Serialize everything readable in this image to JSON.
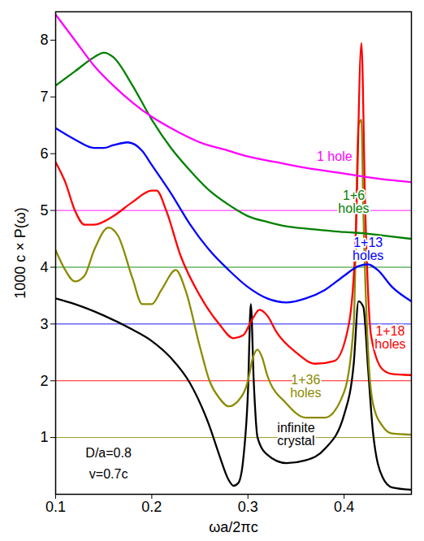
{
  "chart_data": {
    "type": "line",
    "x_label": "ωa/2πc",
    "y_label": "1000 c × P(ω)",
    "xlim": [
      0.1,
      0.47
    ],
    "xticks": [
      0.1,
      0.2,
      0.3,
      0.4
    ],
    "ylim": [
      0,
      8.5
    ],
    "yticks": [
      1,
      2,
      3,
      4,
      5,
      6,
      7,
      8
    ],
    "annotations": [
      "D/a=0.8",
      "v=0.7c"
    ],
    "series": [
      {
        "name": "infinite\ncrystal",
        "color": "#000000",
        "x": [
          0.1,
          0.12,
          0.15,
          0.18,
          0.2,
          0.22,
          0.24,
          0.26,
          0.27,
          0.28,
          0.285,
          0.29,
          0.295,
          0.3,
          0.303,
          0.306,
          0.31,
          0.32,
          0.34,
          0.36,
          0.38,
          0.4,
          0.41,
          0.415,
          0.42,
          0.425,
          0.43,
          0.44,
          0.45,
          0.47
        ],
        "values": [
          3.45,
          3.35,
          3.15,
          2.9,
          2.7,
          2.4,
          1.95,
          1.2,
          0.7,
          0.25,
          0.15,
          0.2,
          0.6,
          1.8,
          3.35,
          2.0,
          1.0,
          0.7,
          0.55,
          0.6,
          0.8,
          1.4,
          2.3,
          3.4,
          3.3,
          2.2,
          1.1,
          0.3,
          0.12,
          0.08
        ]
      },
      {
        "name": "1+36\nholes",
        "color": "#8b8b00",
        "baseline": 1,
        "x": [
          0.1,
          0.11,
          0.12,
          0.13,
          0.14,
          0.155,
          0.165,
          0.18,
          0.19,
          0.2,
          0.21,
          0.225,
          0.235,
          0.25,
          0.26,
          0.27,
          0.28,
          0.29,
          0.3,
          0.305,
          0.31,
          0.315,
          0.32,
          0.34,
          0.36,
          0.38,
          0.4,
          0.41,
          0.415,
          0.418,
          0.42,
          0.425,
          0.43,
          0.44,
          0.45,
          0.47
        ],
        "values": [
          4.3,
          3.95,
          3.75,
          3.85,
          4.3,
          4.7,
          4.55,
          3.8,
          3.35,
          3.35,
          3.6,
          3.95,
          3.6,
          2.6,
          2.0,
          1.7,
          1.55,
          1.65,
          2.0,
          2.4,
          2.55,
          2.4,
          2.1,
          1.6,
          1.35,
          1.35,
          1.8,
          3.0,
          6.5,
          6.6,
          5.0,
          2.5,
          1.6,
          1.2,
          1.07,
          1.05
        ]
      },
      {
        "name": "1+18\nholes",
        "color": "#ff0000",
        "baseline": 2,
        "x": [
          0.1,
          0.11,
          0.12,
          0.13,
          0.14,
          0.16,
          0.18,
          0.2,
          0.205,
          0.215,
          0.23,
          0.25,
          0.27,
          0.285,
          0.295,
          0.305,
          0.312,
          0.32,
          0.33,
          0.35,
          0.37,
          0.39,
          0.405,
          0.412,
          0.418,
          0.422,
          0.428,
          0.44,
          0.45,
          0.47
        ],
        "values": [
          5.85,
          5.5,
          5.0,
          4.75,
          4.75,
          4.9,
          5.15,
          5.35,
          5.35,
          5.0,
          4.2,
          3.5,
          3.0,
          2.75,
          2.8,
          3.1,
          3.25,
          3.15,
          2.85,
          2.5,
          2.3,
          2.35,
          3.0,
          4.5,
          7.95,
          5.0,
          2.8,
          2.2,
          2.12,
          2.1
        ]
      },
      {
        "name": "1+13\nholes",
        "color": "#0000ff",
        "baseline": 3,
        "x": [
          0.1,
          0.12,
          0.14,
          0.15,
          0.16,
          0.175,
          0.19,
          0.2,
          0.22,
          0.24,
          0.26,
          0.28,
          0.3,
          0.32,
          0.34,
          0.36,
          0.38,
          0.4,
          0.415,
          0.425,
          0.435,
          0.45,
          0.47
        ],
        "values": [
          6.45,
          6.25,
          6.1,
          6.1,
          6.15,
          6.2,
          6.05,
          5.8,
          5.3,
          4.75,
          4.3,
          3.95,
          3.65,
          3.45,
          3.38,
          3.45,
          3.6,
          3.85,
          4.02,
          4.05,
          3.95,
          3.65,
          3.4
        ]
      },
      {
        "name": "1+6\nholes",
        "color": "#008000",
        "baseline": 4,
        "x": [
          0.1,
          0.12,
          0.14,
          0.15,
          0.16,
          0.18,
          0.2,
          0.22,
          0.24,
          0.26,
          0.28,
          0.3,
          0.32,
          0.34,
          0.36,
          0.38,
          0.4,
          0.42,
          0.44,
          0.47
        ],
        "values": [
          7.2,
          7.45,
          7.7,
          7.78,
          7.7,
          7.2,
          6.6,
          6.1,
          5.7,
          5.35,
          5.1,
          4.9,
          4.8,
          4.72,
          4.68,
          4.65,
          4.62,
          4.6,
          4.56,
          4.5
        ]
      },
      {
        "name": "1 hole",
        "color": "#ff00ff",
        "baseline": 5,
        "x": [
          0.1,
          0.12,
          0.14,
          0.16,
          0.18,
          0.2,
          0.22,
          0.25,
          0.28,
          0.3,
          0.33,
          0.36,
          0.4,
          0.44,
          0.47
        ],
        "values": [
          8.45,
          8.0,
          7.55,
          7.2,
          6.9,
          6.65,
          6.45,
          6.2,
          6.05,
          5.95,
          5.85,
          5.75,
          5.65,
          5.55,
          5.5
        ]
      }
    ]
  }
}
